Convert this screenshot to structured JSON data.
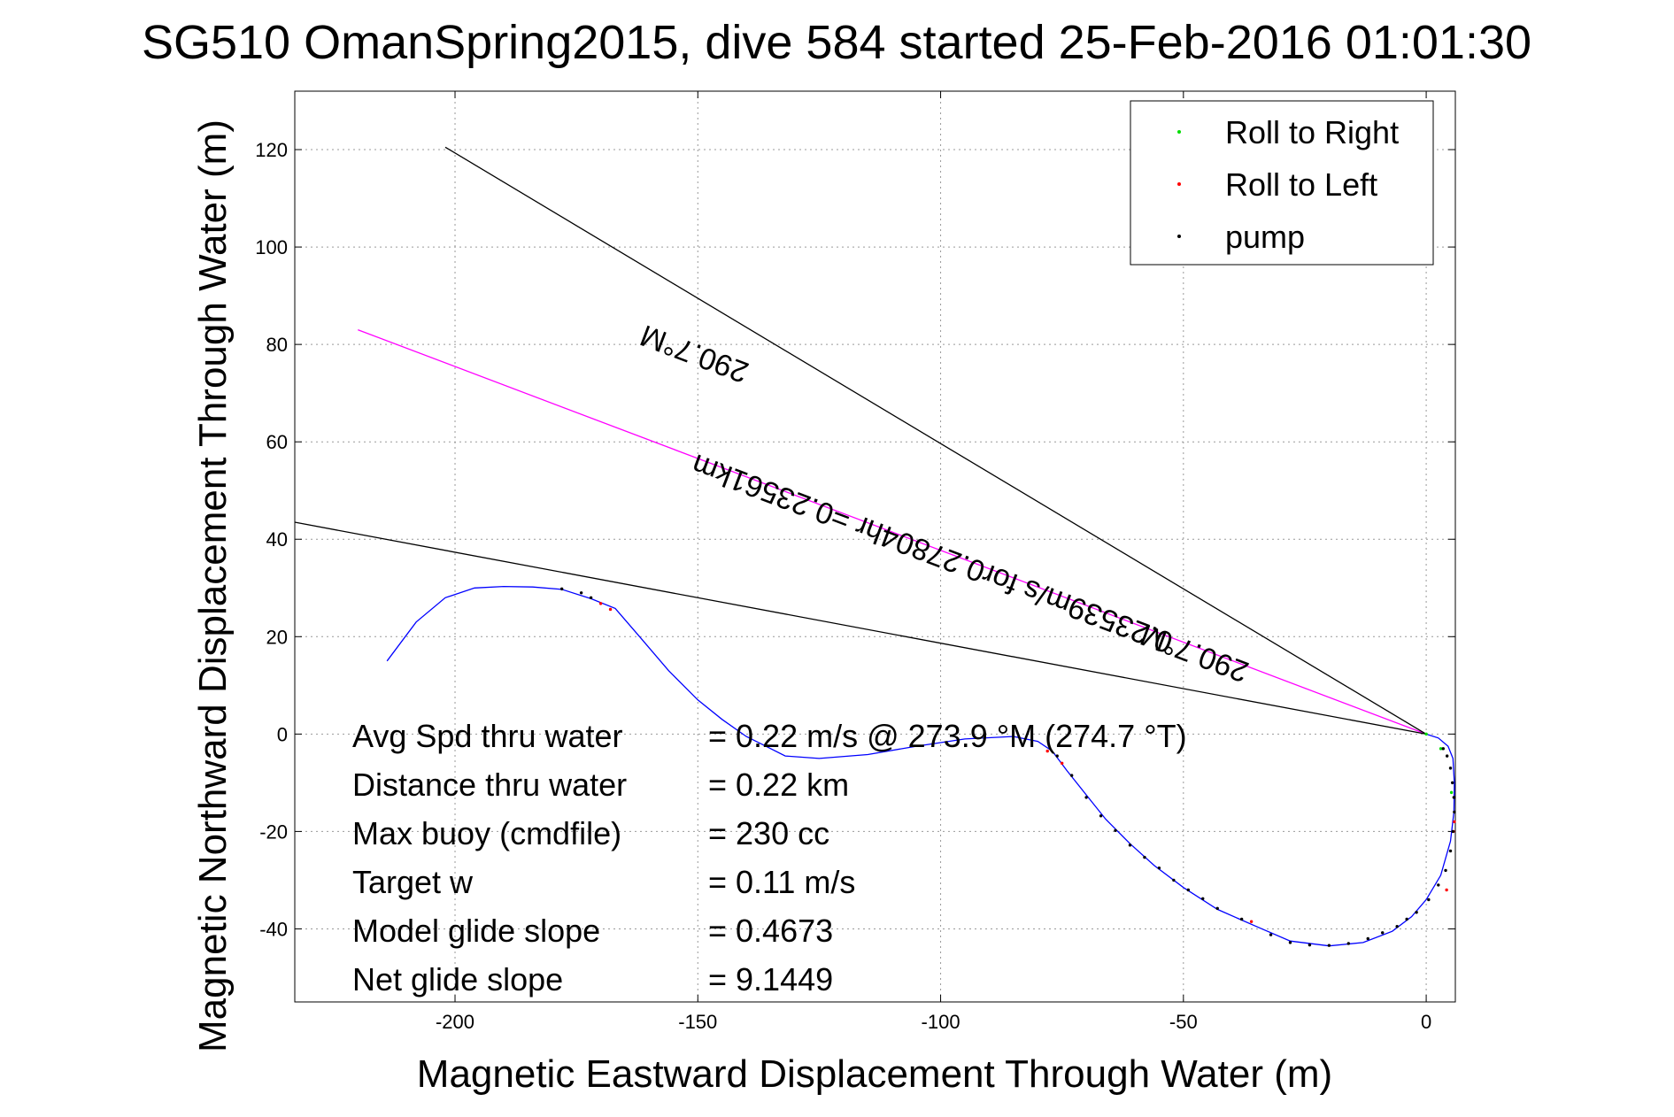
{
  "chart_data": {
    "type": "line",
    "title": "SG510 OmanSpring2015, dive 584 started 25-Feb-2016 01:01:30",
    "xlabel": "Magnetic Eastward Displacement Through Water (m)",
    "ylabel": "Magnetic Northward Displacement Through Water (m)",
    "xlim": [
      -233,
      6
    ],
    "ylim": [
      -55,
      132
    ],
    "xticks": [
      -200,
      -150,
      -100,
      -50,
      0
    ],
    "yticks": [
      -40,
      -20,
      0,
      20,
      40,
      60,
      80,
      100,
      120
    ],
    "xtick_labels": [
      "-200",
      "-150",
      "-100",
      "-50",
      "0"
    ],
    "ytick_labels": [
      "-40",
      "-20",
      "0",
      "20",
      "40",
      "60",
      "80",
      "100",
      "120"
    ],
    "grid": true,
    "legend": {
      "position": "top-right",
      "entries": [
        {
          "label": "Roll to Right",
          "color": "#00dd00"
        },
        {
          "label": "Roll to Left",
          "color": "#ff0000"
        },
        {
          "label": "pump",
          "color": "#000000"
        }
      ]
    },
    "series": [
      {
        "color": "#0000ff",
        "x": [
          -214,
          -208,
          -202,
          -196,
          -190,
          -184,
          -178,
          -172,
          -167,
          -162,
          -156,
          -150,
          -145,
          -140,
          -136,
          -132,
          -125,
          -115,
          -105,
          -95,
          -85,
          -80,
          -77,
          -74,
          -70,
          -66,
          -61,
          -56,
          -50,
          -43,
          -35,
          -28,
          -20,
          -13,
          -7,
          -3,
          0,
          3,
          5,
          5.7,
          5.8,
          5.5,
          4.5,
          2.5,
          0
        ],
        "y": [
          15,
          23,
          28,
          30,
          30.3,
          30.2,
          29.7,
          27.8,
          25.8,
          20,
          13,
          7,
          3,
          -0.5,
          -2.5,
          -4.5,
          -5,
          -4.2,
          -2.5,
          -1,
          -0.5,
          -1.5,
          -3.5,
          -7.5,
          -12.5,
          -17.5,
          -22.5,
          -27,
          -31.5,
          -36,
          -39.5,
          -42.5,
          -43.5,
          -42.8,
          -40.5,
          -37.5,
          -34,
          -29,
          -22,
          -16,
          -10,
          -5,
          -2.5,
          -0.8,
          0
        ]
      },
      {
        "color": "#ff00ff",
        "x": [
          -220,
          0
        ],
        "y": [
          83,
          0
        ]
      },
      {
        "color": "#000000",
        "x": [
          -202,
          0
        ],
        "y": [
          120.5,
          0
        ]
      },
      {
        "color": "#000000",
        "x": [
          -233,
          0
        ],
        "y": [
          43.5,
          0
        ]
      }
    ],
    "markers": {
      "roll_right": {
        "color": "#00dd00",
        "x": [
          0,
          3,
          5.2
        ],
        "y": [
          0,
          -3,
          -12
        ]
      },
      "roll_left": {
        "color": "#ff0000",
        "x": [
          -170,
          -168,
          -78,
          -75,
          5.8,
          5.6,
          4.2,
          -36
        ],
        "y": [
          26.8,
          25.6,
          -3.5,
          -6,
          -18,
          -20,
          -32,
          -38.5
        ]
      },
      "pump": {
        "color": "#000000",
        "x": [
          -178,
          -174,
          -172,
          -76,
          -73,
          -70,
          -67,
          -64,
          -61,
          -58,
          -55,
          -52,
          -49,
          -46,
          -43,
          -38,
          -32,
          -28,
          -24,
          -20,
          -16,
          -12,
          -9,
          -6,
          -4,
          -2,
          0.5,
          2.5,
          4,
          5,
          5.5,
          5.8,
          5.7,
          5.4,
          5,
          4.3,
          3.5
        ],
        "y": [
          29.8,
          29,
          28,
          -4.5,
          -8.5,
          -13,
          -16.8,
          -19.8,
          -22.8,
          -25.3,
          -27.5,
          -30,
          -32,
          -33.8,
          -35.8,
          -38,
          -41.2,
          -42.8,
          -43.3,
          -43.4,
          -43,
          -42,
          -40.8,
          -39.5,
          -38,
          -36.6,
          -34,
          -31,
          -28,
          -24,
          -20,
          -16,
          -13,
          -10,
          -7,
          -4.5,
          -3
        ]
      }
    },
    "annotations": [
      {
        "text": "290.7°M",
        "x": -150,
        "y": 80,
        "rotate": 200.7
      },
      {
        "text": "0.23539m/s for0.27804hr =0.23561km",
        "x": -101,
        "y": 39,
        "rotate": 200.7
      },
      {
        "text": "290.7°M",
        "x": -47,
        "y": 18.5,
        "rotate": 200.7
      }
    ]
  },
  "stats": [
    {
      "label": "Avg Spd thru water",
      "value": "=  0.22 m/s @ 273.9 °M (274.7 °T)"
    },
    {
      "label": "Distance thru water",
      "value": "=  0.22 km"
    },
    {
      "label": "Max buoy (cmdfile)",
      "value": "= 230 cc"
    },
    {
      "label": "Target w",
      "value": "= 0.11 m/s"
    },
    {
      "label": "Model glide slope",
      "value": "= 0.4673"
    },
    {
      "label": "Net glide slope",
      "value": "= 9.1449"
    }
  ]
}
